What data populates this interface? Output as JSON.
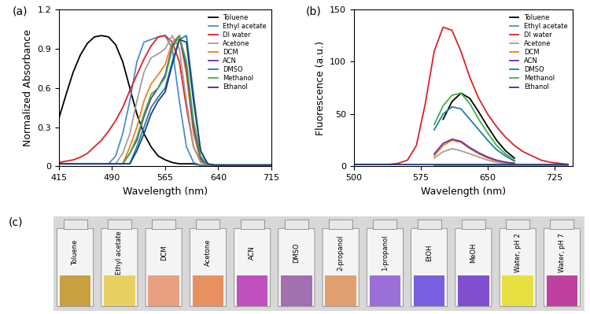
{
  "chart_data": [
    {
      "type": "line",
      "title": "(a)",
      "x_label": "Wavelength (nm)",
      "y_label": "Normalized Absorbance",
      "x": [
        415,
        425,
        435,
        445,
        455,
        465,
        475,
        485,
        495,
        505,
        515,
        525,
        535,
        545,
        555,
        565,
        575,
        585,
        595,
        605,
        615,
        625,
        635,
        645,
        655,
        665,
        675,
        685,
        695,
        705,
        715
      ],
      "xlim": [
        415,
        715
      ],
      "xticks": [
        415,
        490,
        565,
        640,
        715
      ],
      "ylim": [
        0,
        1.2
      ],
      "yticks": [
        0,
        0.3,
        0.6,
        0.9,
        1.2
      ],
      "legend": "upper right",
      "series": [
        {
          "name": "Toluene",
          "color": "#000000",
          "values": [
            0.37,
            0.55,
            0.72,
            0.85,
            0.94,
            0.99,
            1.0,
            0.99,
            0.93,
            0.8,
            0.6,
            0.4,
            0.25,
            0.15,
            0.08,
            0.05,
            0.03,
            0.02,
            0.02,
            0.02,
            0.01,
            0.01,
            0.01,
            0.01,
            0.01,
            0.01,
            0.01,
            0.01,
            0.01,
            0.01,
            0.01
          ]
        },
        {
          "name": "Ethyl acetate",
          "color": "#4a90c8",
          "values": [
            0.02,
            0.02,
            0.02,
            0.02,
            0.02,
            0.02,
            0.02,
            0.02,
            0.08,
            0.25,
            0.5,
            0.8,
            0.95,
            0.97,
            0.99,
            1.0,
            0.9,
            0.5,
            0.15,
            0.03,
            0.01,
            0.01,
            0.01,
            0.01,
            0.01,
            0.01,
            0.01,
            0.01,
            0.01,
            0.01,
            0.01
          ]
        },
        {
          "name": "DI water",
          "color": "#e02020",
          "values": [
            0.03,
            0.04,
            0.05,
            0.07,
            0.1,
            0.15,
            0.2,
            0.27,
            0.35,
            0.45,
            0.58,
            0.7,
            0.82,
            0.92,
            0.99,
            1.0,
            0.95,
            0.8,
            0.45,
            0.15,
            0.04,
            0.01,
            0.01,
            0.01,
            0.01,
            0.01,
            0.01,
            0.01,
            0.01,
            0.01,
            0.01
          ]
        },
        {
          "name": "Acetone",
          "color": "#a0a0a0",
          "values": [
            0.02,
            0.02,
            0.02,
            0.02,
            0.02,
            0.02,
            0.02,
            0.02,
            0.02,
            0.1,
            0.25,
            0.5,
            0.72,
            0.83,
            0.86,
            0.9,
            1.0,
            0.9,
            0.5,
            0.15,
            0.03,
            0.01,
            0.01,
            0.01,
            0.01,
            0.01,
            0.01,
            0.01,
            0.01,
            0.01,
            0.01
          ]
        },
        {
          "name": "DCM",
          "color": "#f08020",
          "values": [
            0.02,
            0.02,
            0.02,
            0.02,
            0.02,
            0.02,
            0.02,
            0.02,
            0.02,
            0.02,
            0.15,
            0.3,
            0.5,
            0.63,
            0.7,
            0.78,
            0.95,
            1.0,
            0.7,
            0.25,
            0.05,
            0.01,
            0.01,
            0.01,
            0.01,
            0.01,
            0.01,
            0.01,
            0.01,
            0.01,
            0.01
          ]
        },
        {
          "name": "ACN",
          "color": "#7030a0",
          "values": [
            0.02,
            0.02,
            0.02,
            0.02,
            0.02,
            0.02,
            0.02,
            0.02,
            0.02,
            0.02,
            0.1,
            0.2,
            0.38,
            0.52,
            0.6,
            0.7,
            0.92,
            1.0,
            0.75,
            0.3,
            0.06,
            0.01,
            0.01,
            0.01,
            0.01,
            0.01,
            0.01,
            0.01,
            0.01,
            0.01,
            0.01
          ]
        },
        {
          "name": "DMSO",
          "color": "#1f80a0",
          "values": [
            0.02,
            0.02,
            0.02,
            0.02,
            0.02,
            0.02,
            0.02,
            0.02,
            0.02,
            0.02,
            0.02,
            0.15,
            0.3,
            0.45,
            0.53,
            0.6,
            0.8,
            0.97,
            1.0,
            0.55,
            0.12,
            0.02,
            0.01,
            0.01,
            0.01,
            0.01,
            0.01,
            0.01,
            0.01,
            0.01,
            0.01
          ]
        },
        {
          "name": "Methanol",
          "color": "#40b040",
          "values": [
            0.02,
            0.02,
            0.02,
            0.02,
            0.02,
            0.02,
            0.02,
            0.02,
            0.02,
            0.02,
            0.1,
            0.22,
            0.4,
            0.55,
            0.6,
            0.68,
            0.9,
            1.0,
            0.8,
            0.35,
            0.08,
            0.01,
            0.01,
            0.01,
            0.01,
            0.01,
            0.01,
            0.01,
            0.01,
            0.01,
            0.01
          ]
        },
        {
          "name": "Ethanol",
          "color": "#1f3f80",
          "values": [
            0.02,
            0.02,
            0.02,
            0.02,
            0.02,
            0.02,
            0.02,
            0.02,
            0.02,
            0.02,
            0.02,
            0.12,
            0.25,
            0.4,
            0.5,
            0.57,
            0.78,
            0.97,
            0.95,
            0.5,
            0.12,
            0.02,
            0.01,
            0.01,
            0.01,
            0.01,
            0.01,
            0.01,
            0.01,
            0.01,
            0.01
          ]
        }
      ]
    },
    {
      "type": "line",
      "title": "(b)",
      "x_label": "Wavelength (nm)",
      "y_label": "Fluorescence (a.u.)",
      "x": [
        500,
        510,
        520,
        530,
        540,
        550,
        560,
        570,
        580,
        590,
        600,
        610,
        620,
        630,
        640,
        650,
        660,
        670,
        680,
        690,
        700,
        710,
        720,
        730,
        740
      ],
      "xlim": [
        500,
        745
      ],
      "xticks": [
        500,
        575,
        650,
        725
      ],
      "ylim": [
        0,
        150
      ],
      "yticks": [
        0,
        50,
        100,
        150
      ],
      "legend": "upper right",
      "series": [
        {
          "name": "Toluene",
          "color": "#000000",
          "values": [
            null,
            null,
            null,
            null,
            null,
            null,
            null,
            null,
            null,
            null,
            45,
            62,
            70,
            65,
            52,
            38,
            25,
            15,
            8,
            null,
            null,
            null,
            null,
            null,
            null
          ]
        },
        {
          "name": "Ethyl acetate",
          "color": "#4a90c8",
          "values": [
            null,
            null,
            null,
            null,
            null,
            null,
            null,
            null,
            null,
            1,
            1,
            1,
            1,
            1,
            1,
            1,
            1,
            1,
            1,
            1,
            1,
            1,
            1,
            1,
            1
          ]
        },
        {
          "name": "DI water",
          "color": "#e02020",
          "values": [
            2,
            2,
            2,
            2,
            2,
            3,
            6,
            20,
            60,
            110,
            133,
            130,
            110,
            85,
            65,
            50,
            38,
            28,
            20,
            14,
            10,
            6,
            4,
            3,
            2
          ]
        },
        {
          "name": "Acetone",
          "color": "#a0a0a0",
          "values": [
            null,
            null,
            null,
            null,
            null,
            null,
            null,
            null,
            null,
            8,
            14,
            17,
            15,
            12,
            9,
            6,
            4,
            3,
            2,
            null,
            null,
            null,
            null,
            null,
            null
          ]
        },
        {
          "name": "DCM",
          "color": "#f08020",
          "values": [
            null,
            null,
            null,
            null,
            null,
            null,
            null,
            null,
            null,
            10,
            20,
            25,
            23,
            17,
            12,
            8,
            5,
            4,
            3,
            null,
            null,
            null,
            null,
            null,
            null
          ]
        },
        {
          "name": "ACN",
          "color": "#7030a0",
          "values": [
            null,
            null,
            null,
            null,
            null,
            null,
            null,
            null,
            null,
            12,
            22,
            26,
            24,
            18,
            13,
            9,
            6,
            4,
            3,
            null,
            null,
            null,
            null,
            null,
            null
          ]
        },
        {
          "name": "DMSO",
          "color": "#1f80a0",
          "values": [
            null,
            null,
            null,
            null,
            null,
            null,
            null,
            null,
            null,
            35,
            50,
            57,
            55,
            45,
            35,
            25,
            16,
            10,
            5,
            null,
            null,
            null,
            null,
            null,
            null
          ]
        },
        {
          "name": "Methanol",
          "color": "#40b040",
          "values": [
            null,
            null,
            null,
            null,
            null,
            null,
            null,
            null,
            null,
            40,
            58,
            68,
            70,
            60,
            45,
            32,
            20,
            12,
            6,
            null,
            null,
            null,
            null,
            null,
            null
          ]
        },
        {
          "name": "Ethanol",
          "color": "#1f3f80",
          "values": [
            2,
            2,
            2,
            2,
            2,
            2,
            2,
            2,
            2,
            2,
            2,
            2,
            2,
            2,
            2,
            2,
            2,
            2,
            2,
            2,
            2,
            2,
            2,
            2,
            2
          ]
        }
      ]
    }
  ],
  "photo": {
    "title": "(c)",
    "vials": [
      {
        "label": "Toluene",
        "color": "#c8a040"
      },
      {
        "label": "Ethyl acetate",
        "color": "#e8d060"
      },
      {
        "label": "DCM",
        "color": "#e8a080"
      },
      {
        "label": "Acetone",
        "color": "#e89060"
      },
      {
        "label": "ACN",
        "color": "#c050c0"
      },
      {
        "label": "DMSO",
        "color": "#a070b0"
      },
      {
        "label": "2-propanol",
        "color": "#e0a070"
      },
      {
        "label": "1-propanol",
        "color": "#9a70d8"
      },
      {
        "label": "EtOH",
        "color": "#7a60e0"
      },
      {
        "label": "MeOH",
        "color": "#8050d0"
      },
      {
        "label": "Water, pH 2",
        "color": "#e8e040"
      },
      {
        "label": "Water, pH 7",
        "color": "#c040a0"
      }
    ]
  }
}
